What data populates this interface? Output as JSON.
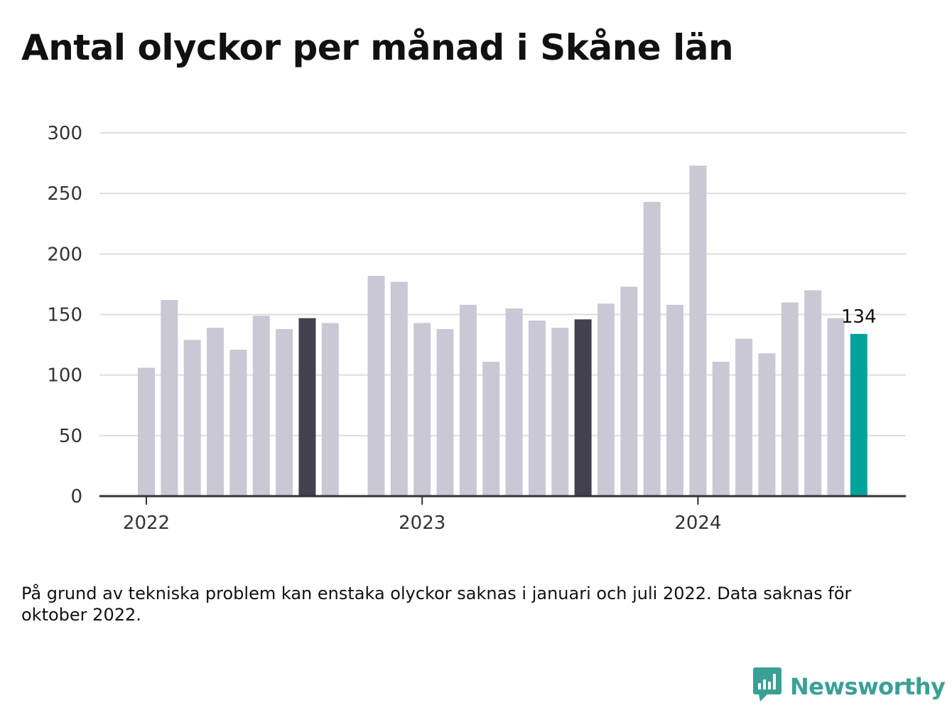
{
  "title": "Antal olyckor per månad i Skåne län",
  "note": "På grund av tekniska problem kan enstaka olyckor saknas i januari och juli 2022. Data saknas för oktober 2022.",
  "brand": {
    "name": "Newsworthy",
    "logo_icon": "newsworthy-logo-icon"
  },
  "colors": {
    "bar": "#c9c8d4",
    "highlight": "#43414e",
    "current": "#00a29a",
    "grid": "#dddddd",
    "axis": "#333333"
  },
  "chart_data": {
    "type": "bar",
    "title": "Antal olyckor per månad i Skåne län",
    "xlabel": "",
    "ylabel": "",
    "ylim": [
      0,
      300
    ],
    "yticks": [
      "0",
      "50",
      "100",
      "150",
      "200",
      "250",
      "300"
    ],
    "year_labels": [
      {
        "label": "2022",
        "x": "2022-01"
      },
      {
        "label": "2023",
        "x": "2023-01"
      },
      {
        "label": "2024",
        "x": "2024-01"
      }
    ],
    "grid": true,
    "legend": "none",
    "x": [
      "2022-01",
      "2022-02",
      "2022-03",
      "2022-04",
      "2022-05",
      "2022-06",
      "2022-07",
      "2022-08",
      "2022-09",
      "2022-10",
      "2022-11",
      "2022-12",
      "2023-01",
      "2023-02",
      "2023-03",
      "2023-04",
      "2023-05",
      "2023-06",
      "2023-07",
      "2023-08",
      "2023-09",
      "2023-10",
      "2023-11",
      "2023-12",
      "2024-01",
      "2024-02",
      "2024-03",
      "2024-04",
      "2024-05",
      "2024-06",
      "2024-07",
      "2024-08"
    ],
    "values": [
      106,
      162,
      129,
      139,
      121,
      149,
      138,
      147,
      143,
      null,
      182,
      177,
      143,
      138,
      158,
      111,
      155,
      145,
      139,
      146,
      159,
      173,
      243,
      158,
      273,
      111,
      130,
      118,
      160,
      170,
      147,
      134
    ],
    "highlight": [
      "2022-08",
      "2023-08"
    ],
    "current": "2024-08",
    "data_labels": [
      {
        "x": "2024-08",
        "text": "134"
      }
    ]
  }
}
